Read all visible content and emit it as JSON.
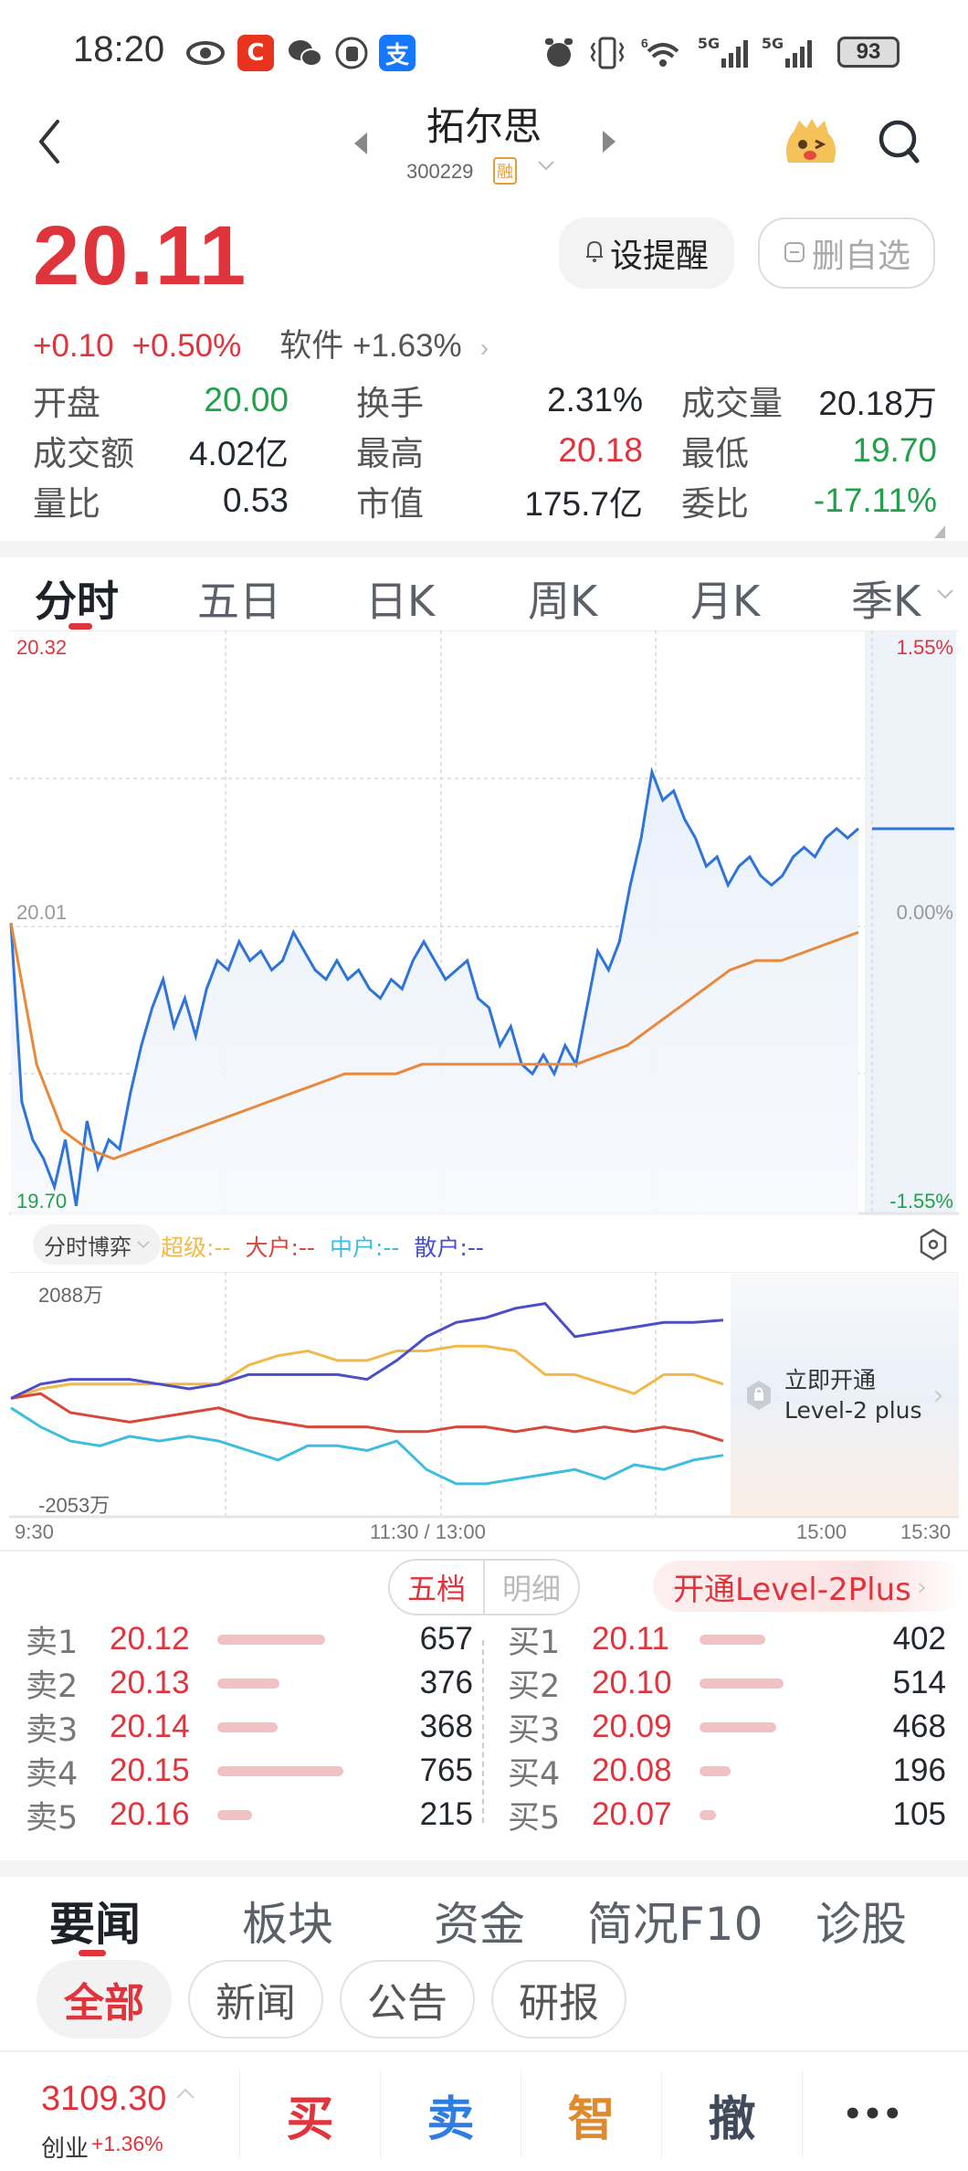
{
  "status_bar": {
    "time": "18:20",
    "left_icons": [
      "eye-icon",
      "c-app-icon",
      "wechat-icon",
      "thumb-app-icon",
      "alipay-icon"
    ],
    "right_icons": [
      "alarm-icon",
      "vibrate-icon",
      "wifi-icon",
      "5g-signal-icon",
      "5g-signal-icon"
    ],
    "signal1": "5G",
    "signal2": "5G",
    "wifi_badge": "6",
    "battery": "93"
  },
  "header": {
    "stock_name": "拓尔思",
    "stock_code": "300229",
    "margin_badge": "融"
  },
  "quote": {
    "price": "20.11",
    "change": "+0.10",
    "change_pct": "+0.50%",
    "sector_name": "软件",
    "sector_change": "+1.63%",
    "remind_button": "设提醒",
    "delete_watch_button": "删自选",
    "colors": {
      "up": "#e0343d",
      "down": "#22a04b"
    }
  },
  "stats": [
    [
      {
        "label": "开盘",
        "value": "20.00",
        "tone": "green"
      },
      {
        "label": "换手",
        "value": "2.31%",
        "tone": "dark"
      },
      {
        "label": "成交量",
        "value": "20.18万",
        "tone": "dark"
      }
    ],
    [
      {
        "label": "成交额",
        "value": "4.02亿",
        "tone": "dark"
      },
      {
        "label": "最高",
        "value": "20.18",
        "tone": "red"
      },
      {
        "label": "最低",
        "value": "19.70",
        "tone": "green"
      }
    ],
    [
      {
        "label": "量比",
        "value": "0.53",
        "tone": "dark"
      },
      {
        "label": "市值",
        "value": "175.7亿",
        "tone": "dark"
      },
      {
        "label": "委比",
        "value": "-17.11%",
        "tone": "green"
      }
    ]
  ],
  "chart_tabs": [
    {
      "label": "分时",
      "active": true
    },
    {
      "label": "五日",
      "active": false
    },
    {
      "label": "日K",
      "active": false
    },
    {
      "label": "周K",
      "active": false
    },
    {
      "label": "月K",
      "active": false
    },
    {
      "label": "季K",
      "active": false
    }
  ],
  "flow_header": {
    "selector": "分时博弈",
    "legend": [
      {
        "label": "超级:--",
        "color": "#f0b94a"
      },
      {
        "label": "大户:--",
        "color": "#d9473a"
      },
      {
        "label": "中户:--",
        "color": "#3fbde0"
      },
      {
        "label": "散户:--",
        "color": "#4b4fc6"
      }
    ]
  },
  "level2_promo": {
    "line1": "立即开通",
    "line2": "Level-2 plus"
  },
  "x_axis": {
    "start": "9:30",
    "mid": "11:30 / 13:00",
    "end": "15:00",
    "close": "15:30"
  },
  "order_book": {
    "toggle": [
      {
        "label": "五档",
        "active": true
      },
      {
        "label": "明细",
        "active": false
      }
    ],
    "level2_button": "开通Level-2Plus",
    "asks": [
      {
        "level": "卖1",
        "price": "20.12",
        "qty": "657"
      },
      {
        "level": "卖2",
        "price": "20.13",
        "qty": "376"
      },
      {
        "level": "卖3",
        "price": "20.14",
        "qty": "368"
      },
      {
        "level": "卖4",
        "price": "20.15",
        "qty": "765"
      },
      {
        "level": "卖5",
        "price": "20.16",
        "qty": "215"
      }
    ],
    "bids": [
      {
        "level": "买1",
        "price": "20.11",
        "qty": "402"
      },
      {
        "level": "买2",
        "price": "20.10",
        "qty": "514"
      },
      {
        "level": "买3",
        "price": "20.09",
        "qty": "468"
      },
      {
        "level": "买4",
        "price": "20.08",
        "qty": "196"
      },
      {
        "level": "买5",
        "price": "20.07",
        "qty": "105"
      }
    ]
  },
  "news_tabs": [
    {
      "label": "要闻",
      "active": true
    },
    {
      "label": "板块",
      "active": false
    },
    {
      "label": "资金",
      "active": false
    },
    {
      "label": "简况F10",
      "active": false
    },
    {
      "label": "诊股",
      "active": false
    }
  ],
  "news_filters": [
    {
      "label": "全部",
      "active": true
    },
    {
      "label": "新闻",
      "active": false
    },
    {
      "label": "公告",
      "active": false
    },
    {
      "label": "研报",
      "active": false
    }
  ],
  "bottom_bar": {
    "index_value": "3109.30",
    "index_name": "创业",
    "index_change": "+1.36%",
    "actions": [
      {
        "label": "买",
        "color": "#e0343d"
      },
      {
        "label": "卖",
        "color": "#2f7de1"
      },
      {
        "label": "智",
        "color": "#e08a2c"
      },
      {
        "label": "撤",
        "color": "#3f4a5a"
      },
      {
        "label": "•••",
        "color": "#333"
      }
    ]
  },
  "chart_data": [
    {
      "type": "line",
      "title": "分时",
      "y_left_ticks": [
        "20.32",
        "20.01",
        "19.70"
      ],
      "y_right_ticks": [
        "1.55%",
        "0.00%",
        "-1.55%"
      ],
      "ylim": [
        19.7,
        20.32
      ],
      "prev_close": 20.01,
      "x_ticks": [
        "9:30",
        "11:30 / 13:00",
        "15:00",
        "15:30"
      ],
      "series": [
        {
          "name": "price",
          "color": "#2f74d8",
          "values": [
            20.01,
            19.82,
            19.78,
            19.76,
            19.73,
            19.78,
            19.71,
            19.8,
            19.75,
            19.78,
            19.77,
            19.83,
            19.88,
            19.92,
            19.95,
            19.9,
            19.93,
            19.89,
            19.94,
            19.97,
            19.96,
            19.99,
            19.97,
            19.98,
            19.96,
            19.97,
            20.0,
            19.98,
            19.96,
            19.95,
            19.97,
            19.95,
            19.96,
            19.94,
            19.93,
            19.95,
            19.94,
            19.97,
            19.99,
            19.97,
            19.95,
            19.96,
            19.97,
            19.93,
            19.92,
            19.88,
            19.9,
            19.86,
            19.85,
            19.87,
            19.85,
            19.88,
            19.86,
            19.92,
            19.98,
            19.96,
            19.99,
            20.05,
            20.1,
            20.17,
            20.14,
            20.15,
            20.12,
            20.1,
            20.07,
            20.08,
            20.05,
            20.07,
            20.08,
            20.06,
            20.05,
            20.06,
            20.08,
            20.09,
            20.08,
            20.1,
            20.11,
            20.1,
            20.11
          ]
        },
        {
          "name": "avg_price",
          "color": "#e8893c",
          "values": [
            20.01,
            19.86,
            19.79,
            19.77,
            19.76,
            19.77,
            19.78,
            19.79,
            19.8,
            19.81,
            19.82,
            19.83,
            19.84,
            19.85,
            19.85,
            19.85,
            19.86,
            19.86,
            19.86,
            19.86,
            19.86,
            19.86,
            19.86,
            19.87,
            19.88,
            19.9,
            19.92,
            19.94,
            19.96,
            19.97,
            19.97,
            19.98,
            19.99,
            20.0
          ]
        }
      ]
    },
    {
      "type": "line",
      "title": "分时博弈",
      "y_ticks": [
        "2088万",
        "-2053万"
      ],
      "ylim": [
        -2053,
        2088
      ],
      "series": [
        {
          "name": "超级",
          "color": "#f0b94a",
          "values": [
            0,
            200,
            300,
            300,
            300,
            300,
            300,
            300,
            700,
            900,
            1000,
            800,
            800,
            1000,
            1000,
            1100,
            1100,
            1000,
            500,
            500,
            300,
            100,
            500,
            500,
            300
          ]
        },
        {
          "name": "大户",
          "color": "#d9473a",
          "values": [
            0,
            100,
            -300,
            -400,
            -500,
            -400,
            -300,
            -200,
            -400,
            -500,
            -600,
            -600,
            -600,
            -700,
            -700,
            -600,
            -600,
            -700,
            -600,
            -700,
            -600,
            -700,
            -600,
            -700,
            -900
          ]
        },
        {
          "name": "中户",
          "color": "#3fbde0",
          "values": [
            -200,
            -600,
            -900,
            -1000,
            -800,
            -900,
            -800,
            -900,
            -1100,
            -1300,
            -1000,
            -1000,
            -1100,
            -900,
            -1500,
            -1800,
            -1800,
            -1700,
            -1600,
            -1500,
            -1700,
            -1400,
            -1500,
            -1300,
            -1200
          ]
        },
        {
          "name": "散户",
          "color": "#4b4fc6",
          "values": [
            0,
            300,
            400,
            400,
            400,
            300,
            200,
            300,
            500,
            500,
            500,
            500,
            400,
            800,
            1300,
            1600,
            1700,
            1900,
            2000,
            1300,
            1400,
            1500,
            1600,
            1600,
            1650
          ]
        }
      ]
    }
  ]
}
